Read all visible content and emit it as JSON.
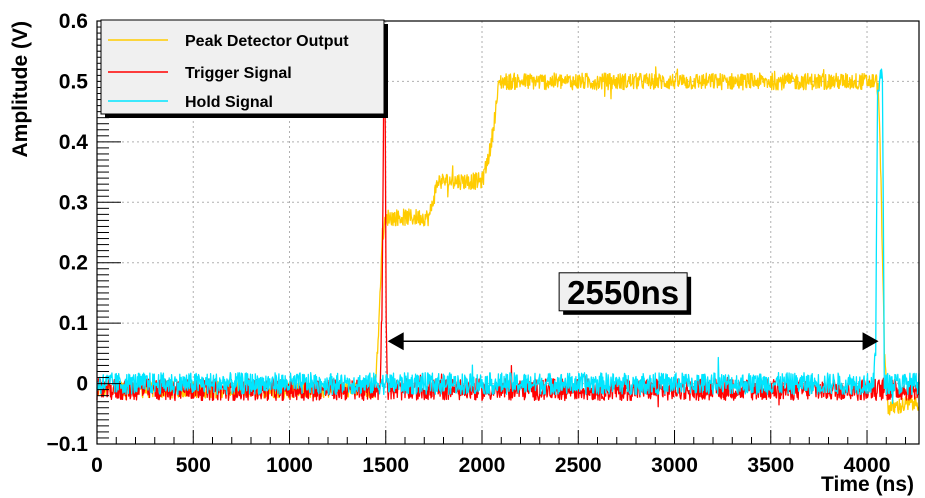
{
  "chart_data": {
    "type": "line",
    "title": "",
    "xlabel": "Time (ns)",
    "ylabel": "Amplitude (V)",
    "xlim": [
      0,
      4270
    ],
    "ylim": [
      -0.1,
      0.6
    ],
    "grid": true,
    "legend_position": "top-left",
    "x_ticks": [
      0,
      500,
      1000,
      1500,
      2000,
      2500,
      3000,
      3500,
      4000
    ],
    "x_tick_labels": [
      "0",
      "500",
      "1000",
      "1500",
      "2000",
      "2500",
      "3000",
      "3500",
      "4000"
    ],
    "y_ticks": [
      -0.1,
      0,
      0.1,
      0.2,
      0.3,
      0.4,
      0.5,
      0.6
    ],
    "y_tick_labels": [
      "−0.1",
      "0",
      "0.1",
      "0.2",
      "0.3",
      "0.4",
      "0.5",
      "0.6"
    ],
    "series": [
      {
        "name": "Peak Detector Output",
        "color": "#ffcc00",
        "noise": 0.014,
        "x": [
          0,
          1440,
          1455,
          1470,
          1480,
          1500,
          1510,
          1725,
          1770,
          2000,
          2005,
          2045,
          2090,
          4040,
          4050,
          4060,
          4075,
          4090,
          4110,
          4130,
          4270
        ],
        "y": [
          -0.01,
          -0.01,
          0.04,
          0.14,
          0.24,
          0.27,
          0.275,
          0.275,
          0.335,
          0.335,
          0.34,
          0.39,
          0.5,
          0.5,
          0.5,
          0.48,
          0.3,
          0.05,
          -0.04,
          -0.04,
          -0.03
        ]
      },
      {
        "name": "Trigger Signal",
        "color": "#ff0000",
        "noise": 0.018,
        "x": [
          0,
          1470,
          1480,
          1490,
          1496,
          1502,
          1510,
          4270
        ],
        "y": [
          -0.01,
          -0.01,
          0.12,
          0.5,
          0.52,
          0.1,
          -0.01,
          -0.01
        ]
      },
      {
        "name": "Hold Signal",
        "color": "#00e5ff",
        "noise": 0.018,
        "x": [
          0,
          4035,
          4045,
          4055,
          4070,
          4080,
          4090,
          4270
        ],
        "y": [
          0.0,
          0.0,
          0.06,
          0.48,
          0.52,
          0.5,
          0.0,
          0.0
        ]
      }
    ],
    "annotation": {
      "text": "2550ns",
      "x_start": 1510,
      "x_end": 4060,
      "y": 0.07,
      "label_y": 0.18
    }
  }
}
